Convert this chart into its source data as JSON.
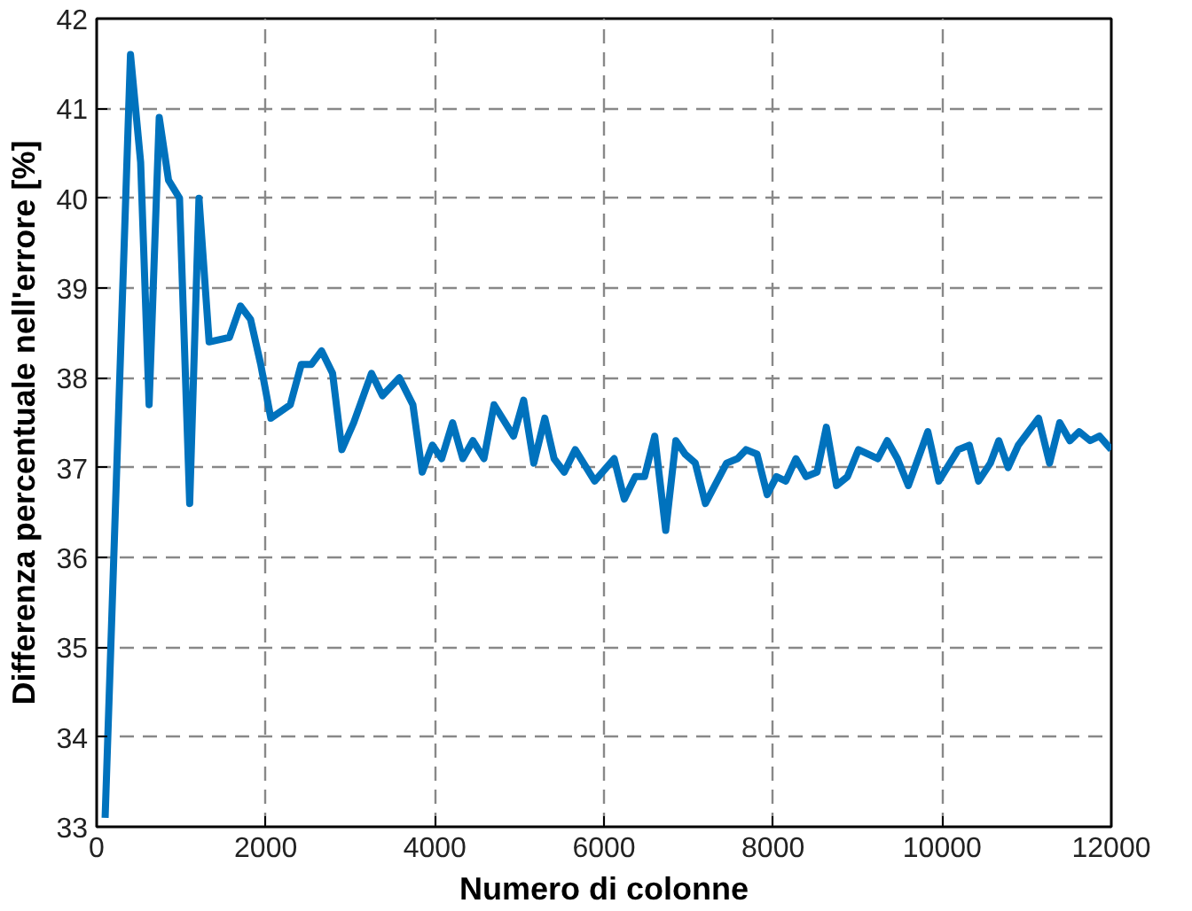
{
  "chart_data": {
    "type": "line",
    "xlabel": "Numero di colonne",
    "ylabel": "Differenza percentuale nell'errore [%]",
    "x": [
      100,
      400,
      520,
      620,
      740,
      850,
      980,
      1100,
      1210,
      1330,
      1570,
      1700,
      1820,
      1940,
      2060,
      2290,
      2420,
      2540,
      2660,
      2790,
      2900,
      3040,
      3250,
      3380,
      3580,
      3740,
      3850,
      3970,
      4080,
      4210,
      4330,
      4450,
      4580,
      4700,
      4930,
      5050,
      5170,
      5300,
      5410,
      5530,
      5660,
      5890,
      6120,
      6240,
      6370,
      6480,
      6600,
      6730,
      6850,
      6960,
      7080,
      7200,
      7450,
      7580,
      7680,
      7810,
      7930,
      8040,
      8150,
      8270,
      8390,
      8520,
      8630,
      8750,
      8880,
      9010,
      9240,
      9350,
      9470,
      9600,
      9830,
      9960,
      10190,
      10320,
      10430,
      10570,
      10670,
      10780,
      10900,
      11140,
      11270,
      11390,
      11510,
      11620,
      11750,
      11860,
      12000
    ],
    "series": [
      {
        "color": "#0072bd",
        "values": [
          33.1,
          41.6,
          40.4,
          37.7,
          40.9,
          40.2,
          40.0,
          36.6,
          40.0,
          38.4,
          38.45,
          38.8,
          38.65,
          38.15,
          37.55,
          37.7,
          38.15,
          38.15,
          38.3,
          38.05,
          37.2,
          37.5,
          38.05,
          37.8,
          38.0,
          37.7,
          36.95,
          37.25,
          37.1,
          37.5,
          37.1,
          37.3,
          37.1,
          37.7,
          37.35,
          37.75,
          37.05,
          37.55,
          37.1,
          36.95,
          37.2,
          36.85,
          37.1,
          36.65,
          36.9,
          36.9,
          37.35,
          36.3,
          37.3,
          37.15,
          37.05,
          36.6,
          37.05,
          37.1,
          37.2,
          37.15,
          36.7,
          36.9,
          36.85,
          37.1,
          36.9,
          36.95,
          37.45,
          36.8,
          36.9,
          37.2,
          37.1,
          37.3,
          37.1,
          36.8,
          37.4,
          36.85,
          37.2,
          37.25,
          36.85,
          37.05,
          37.3,
          37.0,
          37.25,
          37.55,
          37.05,
          37.5,
          37.3,
          37.4,
          37.3,
          37.35,
          37.2
        ]
      }
    ],
    "xlim": [
      0,
      12000
    ],
    "ylim": [
      33,
      42
    ],
    "xticks": [
      0,
      2000,
      4000,
      6000,
      8000,
      10000,
      12000
    ],
    "yticks": [
      33,
      34,
      35,
      36,
      37,
      38,
      39,
      40,
      41,
      42
    ],
    "grid": true,
    "marker": "none",
    "line_style": "solid"
  }
}
